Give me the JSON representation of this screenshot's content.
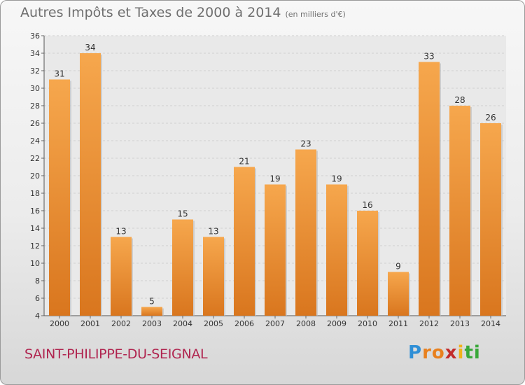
{
  "title": "Autres Impôts et Taxes de 2000 à 2014",
  "subtitle": "(en milliers d'€)",
  "commune": "SAINT-PHILIPPE-DU-SEIGNAL",
  "logo": {
    "letters": [
      "P",
      "r",
      "o",
      "x",
      "i",
      "t",
      "i"
    ],
    "colors": [
      "#2f8fd6",
      "#e8801e",
      "#e8801e",
      "#c22b2b",
      "#f2b21b",
      "#3aa83a",
      "#3aa83a"
    ]
  },
  "colors": {
    "bar_light": "#f6a74d",
    "bar_dark": "#d9761e",
    "title": "#6f6f6f",
    "commune": "#b0244f"
  },
  "chart_data": {
    "type": "bar",
    "title": "Autres Impôts et Taxes de 2000 à 2014",
    "subtitle": "(en milliers d'€)",
    "categories": [
      "2000",
      "2001",
      "2002",
      "2003",
      "2004",
      "2005",
      "2006",
      "2007",
      "2008",
      "2009",
      "2010",
      "2011",
      "2012",
      "2013",
      "2014"
    ],
    "values": [
      31,
      34,
      13,
      5,
      15,
      13,
      21,
      19,
      23,
      19,
      16,
      9,
      33,
      28,
      26
    ],
    "ylim": [
      4,
      36
    ],
    "yticks": [
      4,
      6,
      8,
      10,
      12,
      14,
      16,
      18,
      20,
      22,
      24,
      26,
      28,
      30,
      32,
      34,
      36
    ],
    "grid": true,
    "xlabel": "",
    "ylabel": ""
  }
}
